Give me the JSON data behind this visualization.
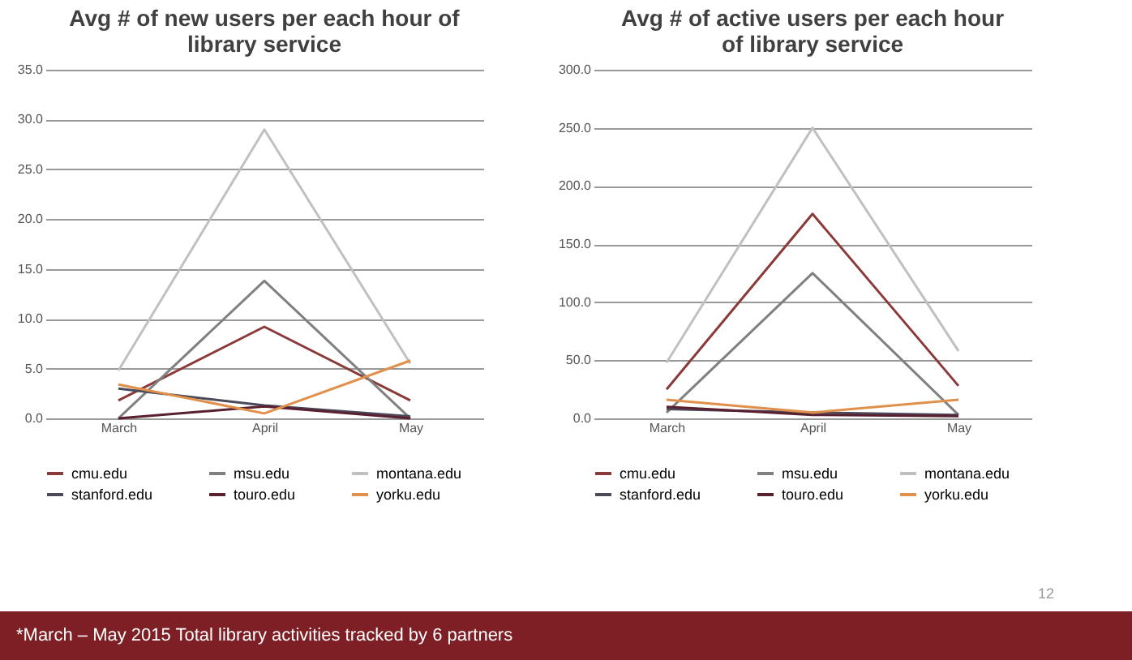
{
  "chart_data": [
    {
      "type": "line",
      "title": "Avg # of new users per each hour of library service",
      "categories": [
        "March",
        "April",
        "May"
      ],
      "series": [
        {
          "name": "cmu.edu",
          "color": "#8b3a3a",
          "values": [
            1.8,
            9.2,
            1.8
          ]
        },
        {
          "name": "msu.edu",
          "color": "#808080",
          "values": [
            0,
            13.8,
            0
          ]
        },
        {
          "name": "montana.edu",
          "color": "#c0c0c0",
          "values": [
            4.8,
            29,
            5.5
          ]
        },
        {
          "name": "stanford.edu",
          "color": "#4a4a5a",
          "values": [
            3,
            1.3,
            0.2
          ]
        },
        {
          "name": "touro.edu",
          "color": "#5a2030",
          "values": [
            0,
            1.2,
            0
          ]
        },
        {
          "name": "yorku.edu",
          "color": "#e0904a",
          "values": [
            3.4,
            0.5,
            5.8
          ]
        }
      ],
      "ylim": [
        0,
        35
      ],
      "yticks": [
        {
          "value": 0,
          "label": "0.0"
        },
        {
          "value": 5,
          "label": "5.0"
        },
        {
          "value": 10,
          "label": "10.0"
        },
        {
          "value": 15,
          "label": "15.0"
        },
        {
          "value": 20,
          "label": "20.0"
        },
        {
          "value": 25,
          "label": "25.0"
        },
        {
          "value": 30,
          "label": "30.0"
        },
        {
          "value": 35,
          "label": "35.0"
        }
      ],
      "grid": "y",
      "legend": "bottom",
      "marker": "none",
      "annotations": [
        "*March – May 2015 Total library  activities  tracked by 6 partners"
      ]
    },
    {
      "type": "line",
      "title": "Avg # of active users per each hour  of library service",
      "categories": [
        "March",
        "April",
        "May"
      ],
      "series": [
        {
          "name": "cmu.edu",
          "color": "#8b3a3a",
          "values": [
            25,
            176,
            28
          ]
        },
        {
          "name": "msu.edu",
          "color": "#808080",
          "values": [
            5,
            125,
            3
          ]
        },
        {
          "name": "montana.edu",
          "color": "#c0c0c0",
          "values": [
            48,
            250,
            58
          ]
        },
        {
          "name": "stanford.edu",
          "color": "#4a4a5a",
          "values": [
            8,
            5,
            3
          ]
        },
        {
          "name": "touro.edu",
          "color": "#5a2030",
          "values": [
            10,
            3,
            2
          ]
        },
        {
          "name": "yorku.edu",
          "color": "#e0904a",
          "values": [
            16,
            5,
            16
          ]
        }
      ],
      "ylim": [
        0,
        300
      ],
      "yticks": [
        {
          "value": 0,
          "label": "0.0"
        },
        {
          "value": 50,
          "label": "50.0"
        },
        {
          "value": 100,
          "label": "100.0"
        },
        {
          "value": 150,
          "label": "150.0"
        },
        {
          "value": 200,
          "label": "200.0"
        },
        {
          "value": 250,
          "label": "250.0"
        },
        {
          "value": 300,
          "label": "300.0"
        }
      ],
      "grid": "y",
      "legend": "bottom",
      "marker": "none",
      "annotations": [
        "12"
      ]
    }
  ]
}
